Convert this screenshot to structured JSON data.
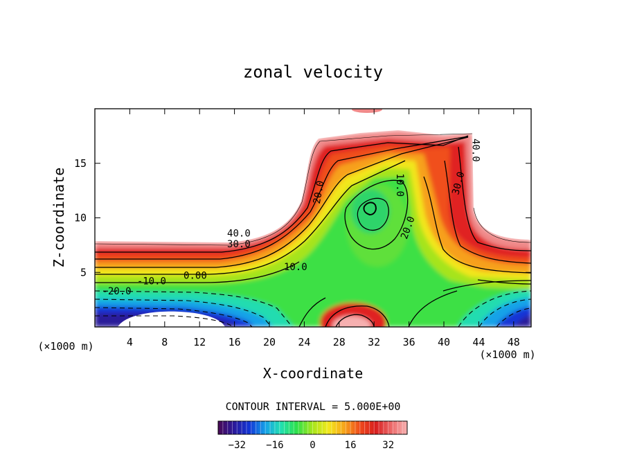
{
  "chart_data": {
    "type": "heatmap",
    "title": "zonal velocity",
    "xlabel": "X-coordinate",
    "ylabel": "Z-coordinate",
    "x_unit": "(×1000 m)",
    "x_ticks": [
      4,
      8,
      12,
      16,
      20,
      24,
      28,
      32,
      36,
      40,
      44,
      48
    ],
    "y_ticks": [
      5,
      10,
      15
    ],
    "xlim": [
      0,
      50
    ],
    "ylim": [
      0,
      20
    ],
    "contour_interval_label": "CONTOUR INTERVAL = 5.000E+00",
    "colorbar": {
      "ticks": [
        "-32",
        "-16",
        "0",
        "16",
        "32"
      ],
      "range": [
        -40,
        40
      ],
      "colors": [
        "#4a0a55",
        "#2b1a9a",
        "#1236d6",
        "#16a2e8",
        "#22e0b0",
        "#2ee04a",
        "#a8e61c",
        "#f2e81c",
        "#f7a51a",
        "#ef4a1c",
        "#d81e1e",
        "#ec6a6a",
        "#f7b2b2"
      ]
    },
    "contour_labels": [
      {
        "text": "40.0",
        "x": 16.5,
        "y": 8.3
      },
      {
        "text": "30.0",
        "x": 16.5,
        "y": 7.3
      },
      {
        "text": "10.0",
        "x": 23.0,
        "y": 5.2
      },
      {
        "text": "0.00",
        "x": 11.5,
        "y": 4.4
      },
      {
        "text": "-10.0",
        "x": 6.5,
        "y": 3.9
      },
      {
        "text": "-20.0",
        "x": 2.5,
        "y": 3.0
      },
      {
        "text": "20.0",
        "x": 26.0,
        "y": 12.3
      },
      {
        "text": "10.0",
        "x": 34.6,
        "y": 13.0
      },
      {
        "text": "20.0",
        "x": 36.2,
        "y": 9.0
      },
      {
        "text": "30.0",
        "x": 42.0,
        "y": 13.1
      },
      {
        "text": "40.0",
        "x": 43.3,
        "y": 16.2
      }
    ]
  }
}
